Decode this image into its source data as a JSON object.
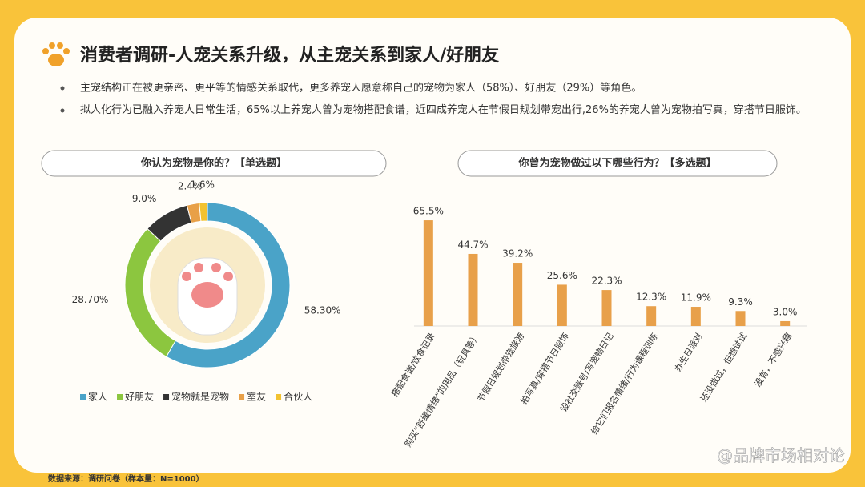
{
  "title": "消费者调研-人宠关系升级，从主宠关系到家人/好朋友",
  "bullets": [
    "主宠结构正在被更亲密、更平等的情感关系取代，更多养宠人愿意称自己的宠物为家人（58%）、好朋友（29%）等角色。",
    "拟人化行为已融入养宠人日常生活，65%以上养宠人曾为宠物搭配食谱，近四成养宠人在节假日规划带宠出行,26%的养宠人曾为宠物拍写真，穿搭节日服饰。"
  ],
  "source": "数据来源：调研问卷（样本量：N=1000）",
  "watermark": "@品牌市场相对论",
  "chart_data": [
    {
      "type": "donut",
      "title": "你认为宠物是你的？【单选题】",
      "categories": [
        "家人",
        "好朋友",
        "宠物就是宠物",
        "室友",
        "合伙人"
      ],
      "values": [
        58.3,
        28.7,
        9.0,
        2.4,
        1.6
      ],
      "value_labels": [
        "58.30%",
        "28.70%",
        "9.0%",
        "2.4%",
        "1.6%"
      ],
      "colors": [
        "#4aa3c8",
        "#8cc63f",
        "#333333",
        "#e8a048",
        "#f2c230"
      ],
      "legend": "bottom"
    },
    {
      "type": "bar",
      "title": "你曾为宠物做过以下哪些行为？【多选题】",
      "categories": [
        "搭配食谱/饮食记录",
        "购买“舒缓情绪”的用品（玩具等）",
        "节假日规划带宠旅游",
        "拍写真/穿搭节日服饰",
        "设社交账号/写宠物日记",
        "给它们报名情绪/行为课程训练",
        "办生日派对",
        "还没做过，但想试试",
        "没有，不感兴趣"
      ],
      "values": [
        65.5,
        44.7,
        39.2,
        25.6,
        22.3,
        12.3,
        11.9,
        9.3,
        3.0
      ],
      "value_labels": [
        "65.5%",
        "44.7%",
        "39.2%",
        "25.6%",
        "22.3%",
        "12.3%",
        "11.9%",
        "9.3%",
        "3.0%"
      ],
      "color": "#e8a04a",
      "ylim": [
        0,
        70
      ]
    }
  ]
}
